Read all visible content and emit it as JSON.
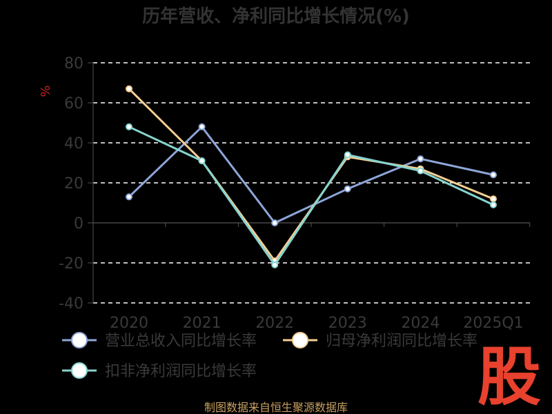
{
  "chart_data": {
    "type": "line",
    "title": "历年营收、净利同比增长情况(%)",
    "ylabel": "%",
    "categories": [
      "2020",
      "2021",
      "2022",
      "2023",
      "2024",
      "2025Q1"
    ],
    "ylim": [
      -40,
      80
    ],
    "yticks": [
      "80",
      "60",
      "40",
      "20",
      "0",
      "-20",
      "-40"
    ],
    "ytick_values": [
      80,
      60,
      40,
      20,
      0,
      -20,
      -40
    ],
    "grid": true,
    "legend_position": "bottom",
    "series": [
      {
        "name": "营业总收入同比增长率",
        "values": [
          13,
          48,
          0,
          17,
          32,
          24
        ],
        "color": "#8ea6d8"
      },
      {
        "name": "归母净利润同比增长率",
        "values": [
          67,
          31,
          -19,
          33,
          27,
          12
        ],
        "color": "#f5cf93"
      },
      {
        "name": "扣非净利润同比增长率",
        "values": [
          48,
          31,
          -21,
          34,
          26,
          9
        ],
        "color": "#86d4cf"
      }
    ]
  },
  "source": "制图数据来自恒生聚源数据库",
  "logo_text": "股"
}
